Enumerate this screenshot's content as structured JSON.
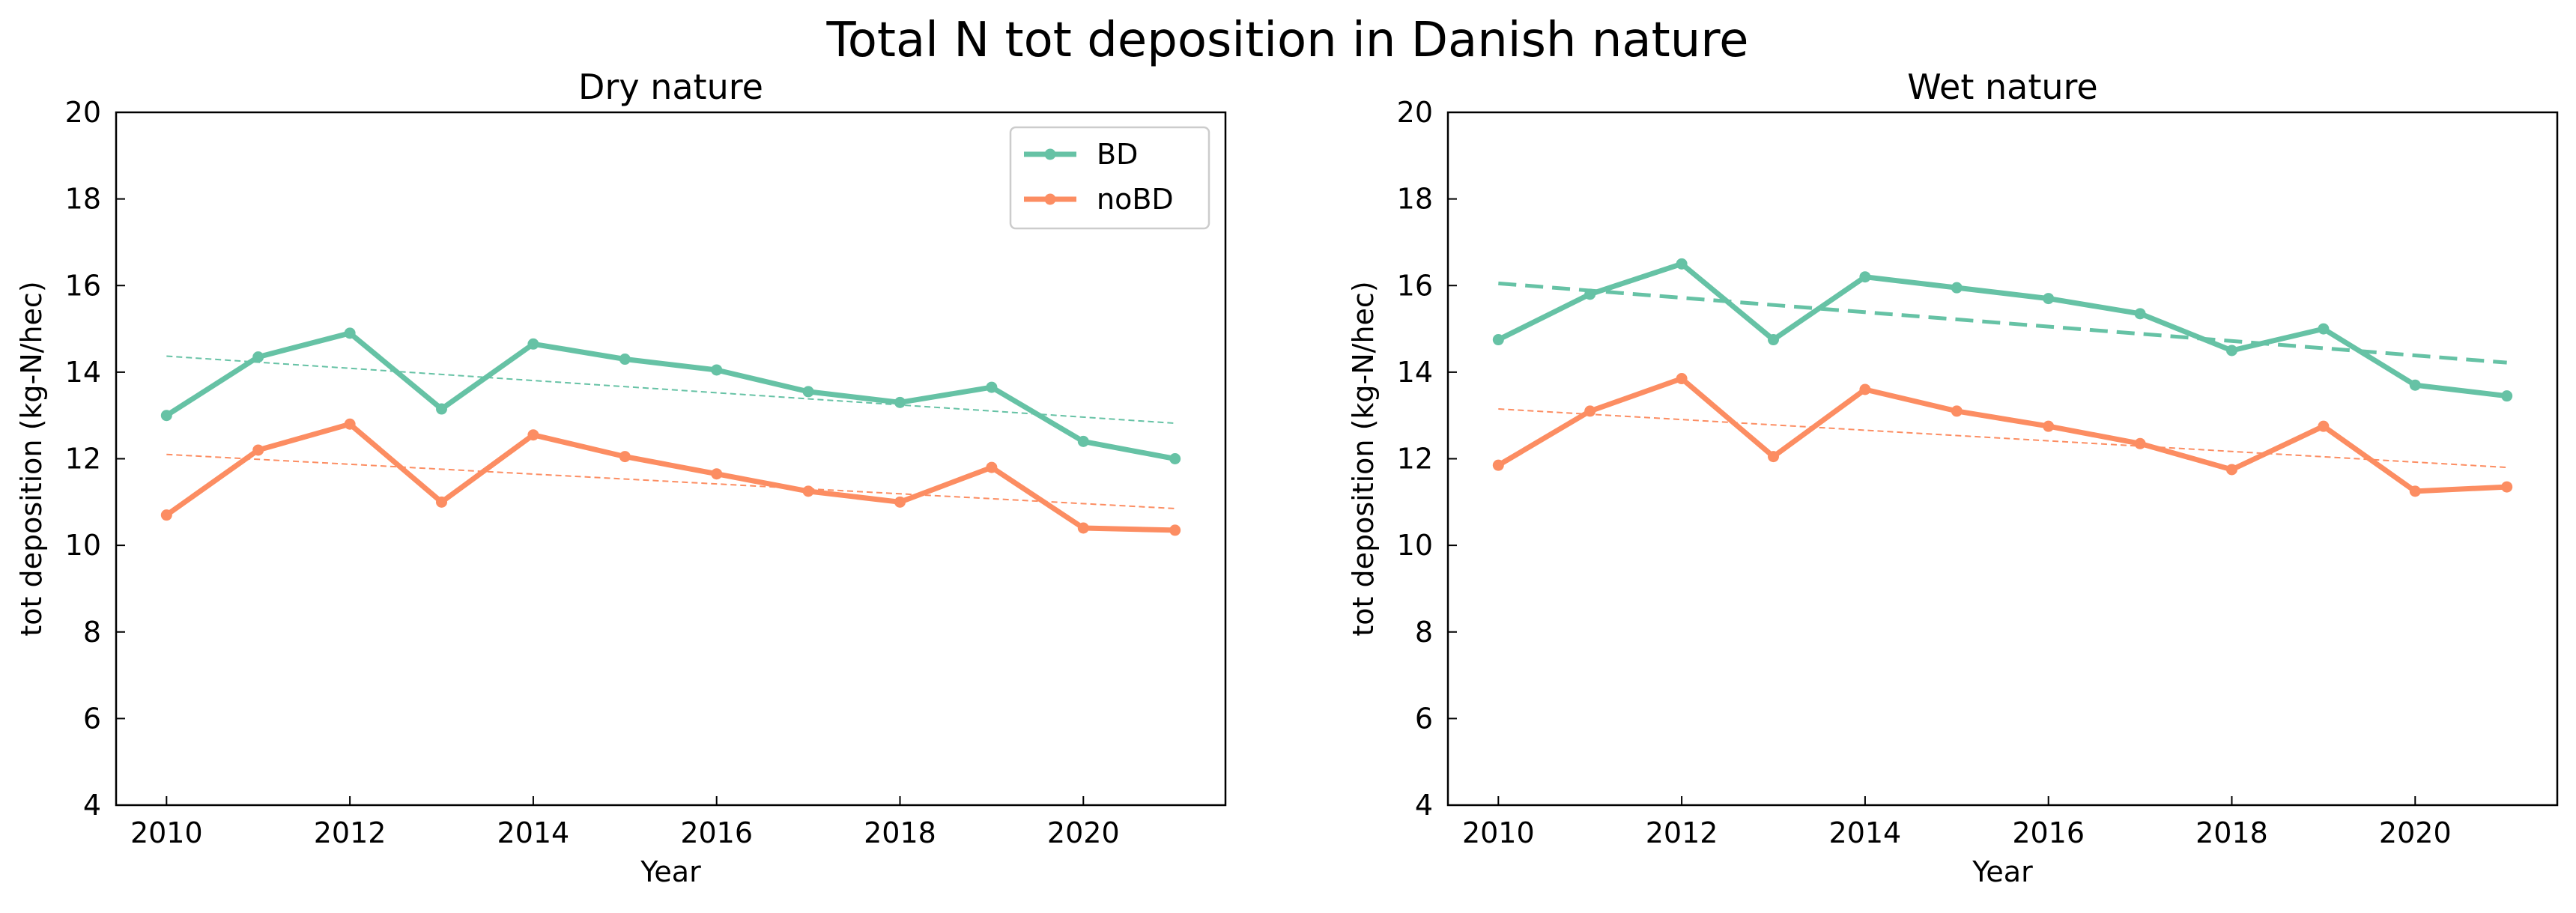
{
  "figure_title": "Total N tot deposition in Danish nature",
  "chart_data": [
    {
      "type": "line",
      "title": "Dry nature",
      "xlabel": "Year",
      "ylabel": "tot deposition (kg-N/hec)",
      "xlim": [
        2009.45,
        2021.55
      ],
      "ylim": [
        4,
        20
      ],
      "xticks": [
        2010,
        2012,
        2014,
        2016,
        2018,
        2020
      ],
      "yticks": [
        4,
        6,
        8,
        10,
        12,
        14,
        16,
        18,
        20
      ],
      "legend": "top-right",
      "x": [
        2010,
        2011,
        2012,
        2013,
        2014,
        2015,
        2016,
        2017,
        2018,
        2019,
        2020,
        2021
      ],
      "series": [
        {
          "name": "BD",
          "color": "#66c2a5",
          "values": [
            13.0,
            14.35,
            14.9,
            13.15,
            14.65,
            14.3,
            14.05,
            13.55,
            13.3,
            13.65,
            12.4,
            12.0
          ],
          "trend": [
            14.37,
            12.82
          ],
          "trend_style": "thin-dashed"
        },
        {
          "name": "noBD",
          "color": "#fc8d62",
          "values": [
            10.7,
            12.2,
            12.8,
            11.0,
            12.55,
            12.05,
            11.65,
            11.25,
            11.0,
            11.8,
            10.4,
            10.35
          ],
          "trend": [
            12.1,
            10.85
          ],
          "trend_style": "thin-dashed"
        }
      ]
    },
    {
      "type": "line",
      "title": "Wet nature",
      "xlabel": "Year",
      "ylabel": "tot deposition (kg-N/hec)",
      "xlim": [
        2009.45,
        2021.55
      ],
      "ylim": [
        4,
        20
      ],
      "xticks": [
        2010,
        2012,
        2014,
        2016,
        2018,
        2020
      ],
      "yticks": [
        4,
        6,
        8,
        10,
        12,
        14,
        16,
        18,
        20
      ],
      "legend": "none",
      "x": [
        2010,
        2011,
        2012,
        2013,
        2014,
        2015,
        2016,
        2017,
        2018,
        2019,
        2020,
        2021
      ],
      "series": [
        {
          "name": "BD",
          "color": "#66c2a5",
          "values": [
            14.75,
            15.8,
            16.5,
            14.75,
            16.2,
            15.95,
            15.7,
            15.35,
            14.5,
            15.0,
            13.7,
            13.45
          ],
          "trend": [
            16.05,
            14.22
          ],
          "trend_style": "thick-dashed"
        },
        {
          "name": "noBD",
          "color": "#fc8d62",
          "values": [
            11.85,
            13.1,
            13.85,
            12.05,
            13.6,
            13.1,
            12.75,
            12.35,
            11.75,
            12.75,
            11.25,
            11.35
          ],
          "trend": [
            13.15,
            11.8
          ],
          "trend_style": "thin-dashed"
        }
      ]
    }
  ]
}
